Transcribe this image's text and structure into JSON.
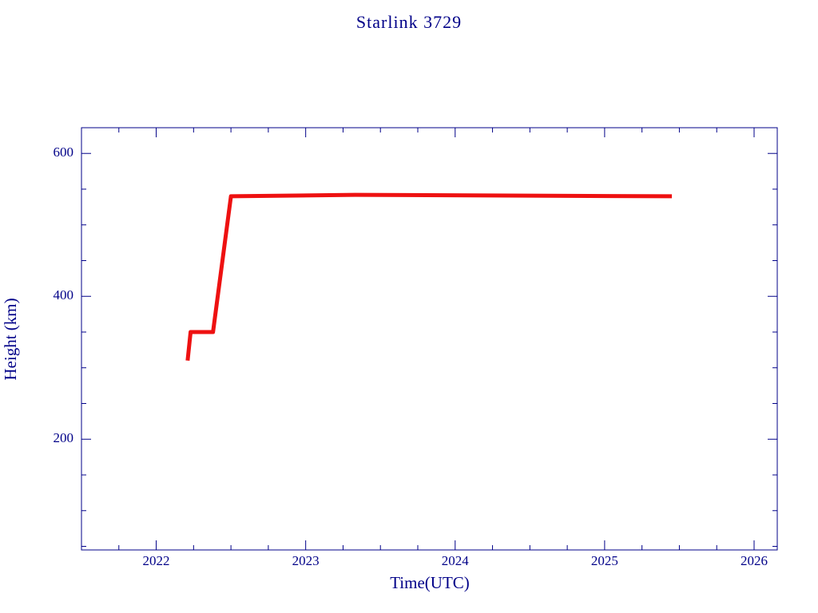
{
  "chart_data": {
    "type": "line",
    "title": "Starlink 3729",
    "x_label": "Time(UTC)",
    "y_label": "Height (km)",
    "x": [
      2022.21,
      2022.23,
      2022.38,
      2022.5,
      2023.33,
      2025.45
    ],
    "series": [
      {
        "color": "#ee1111",
        "values": [
          310,
          350,
          350,
          540,
          542,
          540
        ]
      }
    ],
    "xlim": [
      2021.5,
      2026.155
    ],
    "xticks": [
      2022,
      2023,
      2024,
      2025,
      2026
    ],
    "x_minor_ticks": [
      2021.75,
      2022.25,
      2022.5,
      2022.75,
      2023.25,
      2023.5,
      2023.75,
      2024.25,
      2024.5,
      2024.75,
      2025.25,
      2025.5,
      2025.75
    ],
    "ylim": [
      45,
      636
    ],
    "yticks": [
      200,
      400,
      600
    ],
    "y_minor_ticks": [
      50,
      100,
      150,
      250,
      300,
      350,
      450,
      500,
      550
    ],
    "axis_color": "#000088"
  }
}
